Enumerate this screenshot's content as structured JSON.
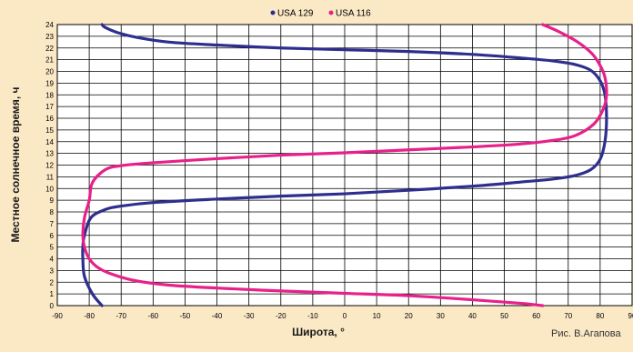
{
  "credit": "Рис. В.Агапова",
  "colors": {
    "background": "#fbe9c6",
    "plot_background": "#ffffff",
    "grid": "#000000",
    "series_blue": "#2e2e8f",
    "series_pink": "#e8208a"
  },
  "chart_data": {
    "type": "line",
    "title": "",
    "xlabel": "Широта, °",
    "ylabel": "Местное солнечное время, ч",
    "xlim": [
      -90,
      90
    ],
    "ylim": [
      0,
      24
    ],
    "xticks": [
      -90,
      -80,
      -70,
      -60,
      -50,
      -40,
      -30,
      -20,
      -10,
      0,
      10,
      20,
      30,
      40,
      50,
      60,
      70,
      80,
      90
    ],
    "yticks": [
      0,
      1,
      2,
      3,
      4,
      5,
      6,
      7,
      8,
      9,
      10,
      11,
      12,
      13,
      14,
      15,
      16,
      17,
      18,
      19,
      20,
      21,
      22,
      23,
      24
    ],
    "grid": true,
    "legend_position": "top",
    "series": [
      {
        "name": "USA 129",
        "color": "#2e2e8f",
        "points": [
          [
            -76,
            0
          ],
          [
            -79,
            1
          ],
          [
            -81.5,
            2.5
          ],
          [
            -82,
            4
          ],
          [
            -82,
            5
          ],
          [
            -81.5,
            6
          ],
          [
            -79.5,
            7.5
          ],
          [
            -75,
            8.2
          ],
          [
            -70,
            8.5
          ],
          [
            -60,
            8.8
          ],
          [
            -40,
            9.1
          ],
          [
            -20,
            9.35
          ],
          [
            0,
            9.55
          ],
          [
            20,
            9.85
          ],
          [
            40,
            10.2
          ],
          [
            55,
            10.55
          ],
          [
            65,
            10.8
          ],
          [
            72,
            11.1
          ],
          [
            77,
            11.6
          ],
          [
            80,
            12.5
          ],
          [
            81.5,
            14
          ],
          [
            82,
            16
          ],
          [
            81.5,
            18
          ],
          [
            80,
            19.2
          ],
          [
            77,
            20.1
          ],
          [
            72,
            20.6
          ],
          [
            65,
            20.9
          ],
          [
            55,
            21.15
          ],
          [
            40,
            21.45
          ],
          [
            20,
            21.7
          ],
          [
            0,
            21.85
          ],
          [
            -20,
            22
          ],
          [
            -40,
            22.25
          ],
          [
            -55,
            22.5
          ],
          [
            -65,
            22.9
          ],
          [
            -71,
            23.3
          ],
          [
            -75,
            23.75
          ],
          [
            -76,
            24
          ]
        ]
      },
      {
        "name": "USA 116",
        "color": "#e8208a",
        "points": [
          [
            62,
            0
          ],
          [
            55,
            0.2
          ],
          [
            40,
            0.5
          ],
          [
            20,
            0.85
          ],
          [
            0,
            1.05
          ],
          [
            -20,
            1.25
          ],
          [
            -40,
            1.5
          ],
          [
            -55,
            1.75
          ],
          [
            -65,
            2.1
          ],
          [
            -72,
            2.6
          ],
          [
            -77,
            3.2
          ],
          [
            -80,
            4
          ],
          [
            -81.5,
            5
          ],
          [
            -82,
            6
          ],
          [
            -81.5,
            7.5
          ],
          [
            -80,
            9
          ],
          [
            -79,
            10.5
          ],
          [
            -75,
            11.6
          ],
          [
            -70,
            11.95
          ],
          [
            -60,
            12.2
          ],
          [
            -40,
            12.55
          ],
          [
            -20,
            12.85
          ],
          [
            0,
            13.05
          ],
          [
            20,
            13.3
          ],
          [
            40,
            13.55
          ],
          [
            55,
            13.8
          ],
          [
            65,
            14.1
          ],
          [
            72,
            14.5
          ],
          [
            78,
            15.5
          ],
          [
            81,
            16.8
          ],
          [
            82,
            18
          ],
          [
            81.5,
            19.5
          ],
          [
            80,
            20.5
          ],
          [
            77.5,
            21.5
          ],
          [
            73,
            22.5
          ],
          [
            67,
            23.4
          ],
          [
            62,
            24
          ]
        ]
      }
    ]
  }
}
